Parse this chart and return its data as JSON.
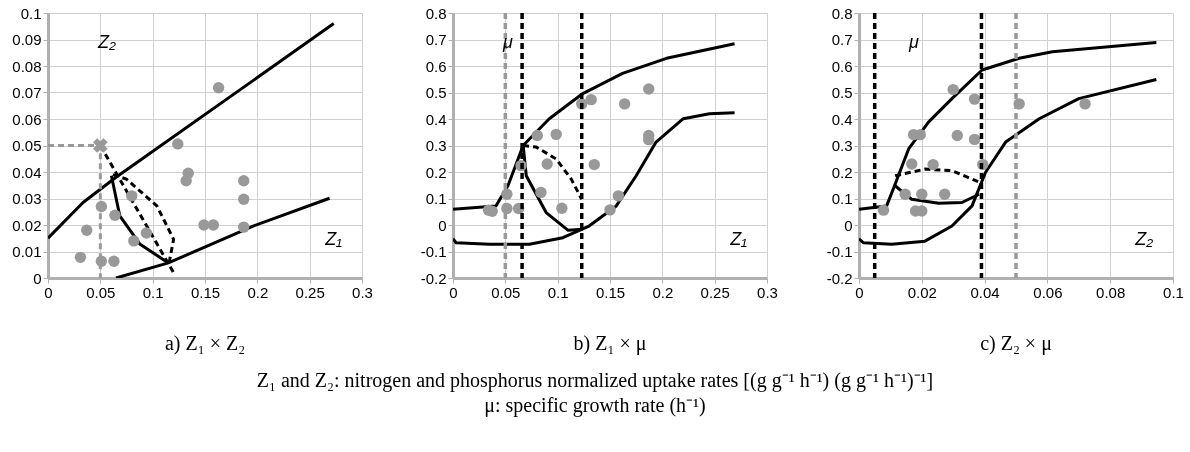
{
  "chart_data": [
    {
      "type": "scatter",
      "title": "a) Z₁ × Z₂",
      "xlabel": "Z₁",
      "ylabel": "Z₂",
      "xlim": [
        0,
        0.3
      ],
      "xticks": [
        0,
        0.05,
        0.1,
        0.15,
        0.2,
        0.25,
        0.3
      ],
      "ylim": [
        0,
        0.1
      ],
      "yticks": [
        0,
        0.01,
        0.02,
        0.03,
        0.04,
        0.05,
        0.06,
        0.07,
        0.08,
        0.09,
        0.1
      ],
      "grid": true,
      "annotations": [
        "Z₁ and Z₂: nitrogen and phosphorus normalized uptake rates [(g g⁻¹ h⁻¹) (g g⁻¹ h⁻¹)⁻¹]",
        "μ: specific growth rate (h⁻¹)"
      ],
      "series": [
        {
          "type": "line",
          "color": "#000000",
          "line_style": "solid",
          "marker": "none",
          "x": [
            0,
            0.0335,
            0.065,
            0.273
          ],
          "values": [
            0.015,
            0.0285,
            0.038,
            0.096
          ]
        },
        {
          "type": "line",
          "color": "#000000",
          "line_style": "solid",
          "marker": "none",
          "x": [
            0.065,
            0.115,
            0.196,
            0.269
          ],
          "values": [
            0,
            0.0057,
            0.0196,
            0.0301
          ]
        },
        {
          "type": "line",
          "color": "#999999",
          "line_style": "dashed",
          "marker": "none",
          "x": [
            0,
            0.05,
            0.05
          ],
          "values": [
            0.05,
            0.05,
            0
          ]
        },
        {
          "type": "line",
          "color": "#000000",
          "line_style": "dashed",
          "marker": "none",
          "x": [
            0.05,
            0.121
          ],
          "values": [
            0.05,
            0.0013
          ]
        },
        {
          "type": "line",
          "color": "#000000",
          "line_style": "solid",
          "marker": "none",
          "x": [
            0.0606,
            0.0686,
            0.088,
            0.115
          ],
          "values": [
            0.0386,
            0.0234,
            0.0127,
            0.0057
          ]
        },
        {
          "type": "line",
          "color": "#000000",
          "line_style": "dashed",
          "marker": "none",
          "x": [
            0.062,
            0.075,
            0.104,
            0.12,
            0.116
          ],
          "values": [
            0.039,
            0.0373,
            0.0272,
            0.0146,
            0.0063
          ]
        },
        {
          "type": "scatter",
          "color": "#999999",
          "marker": "circle",
          "x": [
            0.031,
            0.037,
            0.051,
            0.051,
            0.063,
            0.064,
            0.082,
            0.08,
            0.094,
            0.124,
            0.134,
            0.132,
            0.149,
            0.158,
            0.163,
            0.187,
            0.187,
            0.187
          ],
          "values": [
            0.0078,
            0.018,
            0.027,
            0.0063,
            0.0063,
            0.0237,
            0.014,
            0.031,
            0.017,
            0.0506,
            0.0395,
            0.0367,
            0.02,
            0.02,
            0.0718,
            0.0367,
            0.0297,
            0.0192
          ]
        },
        {
          "type": "scatter",
          "color": "#999999",
          "marker": "cross",
          "x": [
            0.05
          ],
          "values": [
            0.05
          ]
        }
      ]
    },
    {
      "type": "scatter",
      "title": "b) Z₁ × μ",
      "xlabel": "Z₁",
      "ylabel": "μ",
      "xlim": [
        0,
        0.3
      ],
      "xticks": [
        0,
        0.05,
        0.1,
        0.15,
        0.2,
        0.25,
        0.3
      ],
      "ylim": [
        -0.2,
        0.8
      ],
      "yticks": [
        -0.2,
        -0.1,
        0,
        0.1,
        0.2,
        0.3,
        0.4,
        0.5,
        0.6,
        0.7,
        0.8
      ],
      "grid": true,
      "ref_lines": [
        {
          "axis": "x",
          "value": 0.05,
          "color": "#999999",
          "line_style": "dashed"
        },
        {
          "axis": "x",
          "value": 0.066,
          "color": "#000000",
          "line_style": "dashed"
        },
        {
          "axis": "x",
          "value": 0.123,
          "color": "#000000",
          "line_style": "dashed"
        }
      ],
      "series": [
        {
          "type": "line",
          "color": "#000000",
          "line_style": "solid",
          "marker": "none",
          "x": [
            0,
            0.041,
            0.0525,
            0.067,
            0.092,
            0.124,
            0.162,
            0.204,
            0.269
          ],
          "values": [
            0.059,
            0.072,
            0.148,
            0.3,
            0.401,
            0.496,
            0.572,
            0.629,
            0.684
          ]
        },
        {
          "type": "line",
          "color": "#000000",
          "line_style": "solid",
          "marker": "none",
          "x": [
            0,
            0.003,
            0.035,
            0.073,
            0.105,
            0.13,
            0.156,
            0.175,
            0.194,
            0.22,
            0.245,
            0.269
          ],
          "values": [
            -0.052,
            -0.067,
            -0.073,
            -0.073,
            -0.048,
            -0.004,
            0.072,
            0.186,
            0.313,
            0.401,
            0.42,
            0.424
          ]
        },
        {
          "type": "line",
          "color": "#000000",
          "line_style": "solid",
          "marker": "none",
          "x": [
            0.067,
            0.07,
            0.089,
            0.11,
            0.124
          ],
          "values": [
            0.3,
            0.186,
            0.047,
            -0.02,
            -0.016
          ]
        },
        {
          "type": "line",
          "color": "#000000",
          "line_style": "dashed",
          "marker": "none",
          "x": [
            0.067,
            0.0795,
            0.0986,
            0.113,
            0.123
          ],
          "values": [
            0.3,
            0.294,
            0.249,
            0.173,
            0.097
          ]
        },
        {
          "type": "scatter",
          "color": "#999999",
          "marker": "circle",
          "x": [
            0.034,
            0.0375,
            0.0515,
            0.0515,
            0.0627,
            0.065,
            0.0805,
            0.084,
            0.09,
            0.0986,
            0.104,
            0.123,
            0.132,
            0.135,
            0.15,
            0.158,
            0.164,
            0.187,
            0.187,
            0.187
          ],
          "values": [
            0.056,
            0.052,
            0.116,
            0.062,
            0.062,
            0.224,
            0.338,
            0.123,
            0.23,
            0.342,
            0.063,
            0.457,
            0.473,
            0.228,
            0.057,
            0.11,
            0.457,
            0.513,
            0.338,
            0.322
          ]
        }
      ]
    },
    {
      "type": "scatter",
      "title": "c) Z₂ × μ",
      "xlabel": "Z₂",
      "ylabel": "μ",
      "xlim": [
        0,
        0.1
      ],
      "xticks": [
        0,
        0.02,
        0.04,
        0.06,
        0.08,
        0.1
      ],
      "ylim": [
        -0.2,
        0.8
      ],
      "yticks": [
        -0.2,
        -0.1,
        0,
        0.1,
        0.2,
        0.3,
        0.4,
        0.5,
        0.6,
        0.7,
        0.8
      ],
      "grid": true,
      "ref_lines": [
        {
          "axis": "x",
          "value": 0.005,
          "color": "#000000",
          "line_style": "dashed"
        },
        {
          "axis": "x",
          "value": 0.039,
          "color": "#000000",
          "line_style": "dashed"
        },
        {
          "axis": "x",
          "value": 0.05,
          "color": "#999999",
          "line_style": "dashed"
        }
      ],
      "series": [
        {
          "type": "line",
          "color": "#000000",
          "line_style": "solid",
          "marker": "none",
          "x": [
            0,
            0.0088,
            0.0115,
            0.0158,
            0.0222,
            0.0296,
            0.0392,
            0.051,
            0.0616,
            0.0947
          ],
          "values": [
            0.059,
            0.072,
            0.154,
            0.287,
            0.389,
            0.477,
            0.585,
            0.629,
            0.654,
            0.689
          ]
        },
        {
          "type": "line",
          "color": "#000000",
          "line_style": "solid",
          "marker": "none",
          "x": [
            0,
            0.0014,
            0.0104,
            0.021,
            0.0296,
            0.036,
            0.0403,
            0.0467,
            0.0574,
            0.07,
            0.0947
          ],
          "values": [
            -0.052,
            -0.067,
            -0.073,
            -0.061,
            -0.004,
            0.072,
            0.199,
            0.313,
            0.401,
            0.477,
            0.549
          ]
        },
        {
          "type": "line",
          "color": "#000000",
          "line_style": "solid",
          "marker": "none",
          "x": [
            0.0115,
            0.0168,
            0.0254,
            0.0328,
            0.0382
          ],
          "values": [
            0.148,
            0.097,
            0.082,
            0.085,
            0.116
          ]
        },
        {
          "type": "line",
          "color": "#000000",
          "line_style": "dashed",
          "marker": "none",
          "x": [
            0.0115,
            0.0211,
            0.0296,
            0.0385
          ],
          "values": [
            0.186,
            0.211,
            0.205,
            0.161
          ]
        },
        {
          "type": "scatter",
          "color": "#999999",
          "marker": "circle",
          "x": [
            0.0078,
            0.0168,
            0.0174,
            0.0195,
            0.018,
            0.02,
            0.0147,
            0.02,
            0.0236,
            0.0273,
            0.03,
            0.0313,
            0.0368,
            0.0368,
            0.0394,
            0.051,
            0.072
          ],
          "values": [
            0.056,
            0.23,
            0.341,
            0.341,
            0.053,
            0.053,
            0.116,
            0.116,
            0.228,
            0.116,
            0.511,
            0.338,
            0.475,
            0.323,
            0.228,
            0.457,
            0.457
          ]
        }
      ]
    }
  ]
}
